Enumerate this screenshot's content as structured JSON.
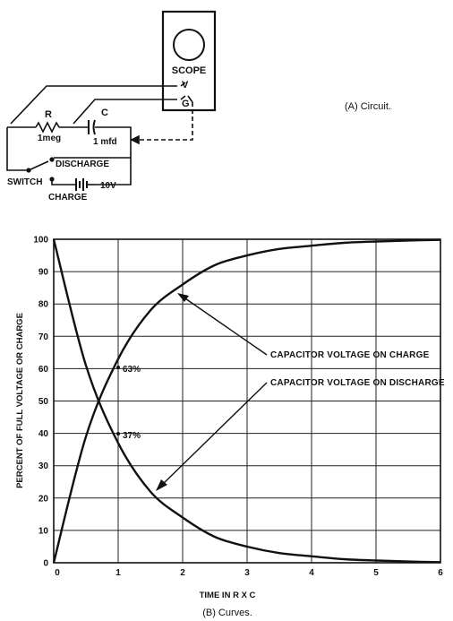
{
  "circuit": {
    "scope_label": "SCOPE",
    "v_label": "V",
    "g_label": "G",
    "r_label": "R",
    "r_value": "1meg",
    "c_label": "C",
    "c_value": "1 mfd",
    "discharge_label": "DISCHARGE",
    "switch_label": "SWITCH",
    "charge_label": "CHARGE",
    "battery_label": "10V",
    "caption": "(A) Circuit."
  },
  "chart_data": {
    "type": "line",
    "title": "",
    "xlabel": "TIME IN R X C",
    "ylabel": "PERCENT OF FULL VOLTAGE OR CHARGE",
    "xlim": [
      0,
      6
    ],
    "ylim": [
      0,
      100
    ],
    "x_ticks": [
      "0",
      "1",
      "2",
      "3",
      "4",
      "5",
      "6"
    ],
    "y_ticks": [
      "0",
      "10",
      "20",
      "30",
      "40",
      "50",
      "60",
      "70",
      "80",
      "90",
      "100"
    ],
    "grid": true,
    "x": [
      0,
      0.5,
      1,
      1.5,
      2,
      2.5,
      3,
      3.5,
      4,
      4.5,
      5,
      5.5,
      6
    ],
    "series": [
      {
        "name": "CAPACITOR VOLTAGE ON CHARGE",
        "values": [
          0,
          39,
          63,
          78,
          86,
          92,
          95,
          97,
          98,
          98.9,
          99.3,
          99.6,
          99.8
        ]
      },
      {
        "name": "CAPACITOR VOLTAGE ON DISCHARGE",
        "values": [
          100,
          61,
          37,
          22,
          14,
          8,
          5,
          3,
          2,
          1.1,
          0.7,
          0.4,
          0.2
        ]
      }
    ],
    "annotations": [
      {
        "text": "63%",
        "x": 1,
        "y": 63
      },
      {
        "text": "37%",
        "x": 1,
        "y": 37
      }
    ],
    "caption": "(B) Curves."
  }
}
